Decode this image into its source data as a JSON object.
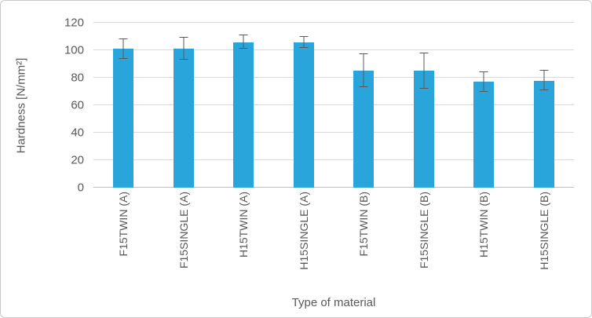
{
  "chart_data": {
    "type": "bar",
    "title": "",
    "categories": [
      "F15TWIN (A)",
      "F15SINGLE (A)",
      "H15TWIN (A)",
      "H15SINGLE (A)",
      "F15TWIN (B)",
      "F15SINGLE (B)",
      "H15TWIN (B)",
      "H15SINGLE (B)"
    ],
    "values": [
      101,
      101,
      106,
      106,
      85,
      85,
      77,
      78
    ],
    "error_bars": [
      7,
      8,
      5,
      4,
      12,
      13,
      7,
      7
    ],
    "xlabel": "Type of material",
    "ylabel": "Hardness [N/mm²]",
    "ylim": [
      0,
      120
    ],
    "yticks": [
      0,
      20,
      40,
      60,
      80,
      100,
      120
    ],
    "grid": true,
    "legend": "none",
    "colors": {
      "bar": "#2AA5DC",
      "error_bar": "#595959",
      "gridline": "#d9d9d9",
      "axis_line": "#bfbfbf",
      "text": "#595959",
      "chart_border": "#c9c9c9",
      "background": "#ffffff"
    }
  }
}
